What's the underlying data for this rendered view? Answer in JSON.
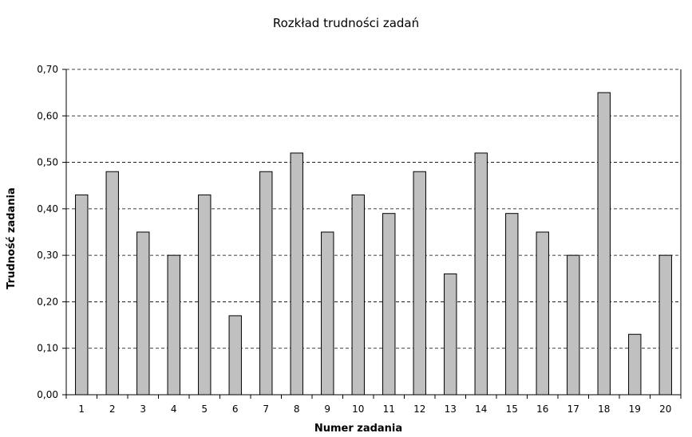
{
  "chart_data": {
    "type": "bar",
    "title": "Rozkład trudności zadań",
    "xlabel": "Numer zadania",
    "ylabel": "Trudność zadania",
    "ylim": [
      0,
      0.7
    ],
    "yticks": [
      "0,00",
      "0,10",
      "0,20",
      "0,30",
      "0,40",
      "0,50",
      "0,60",
      "0,70"
    ],
    "grid": true,
    "categories": [
      "1",
      "2",
      "3",
      "4",
      "5",
      "6",
      "7",
      "8",
      "9",
      "10",
      "11",
      "12",
      "13",
      "14",
      "15",
      "16",
      "17",
      "18",
      "19",
      "20"
    ],
    "values": [
      0.43,
      0.48,
      0.35,
      0.3,
      0.43,
      0.17,
      0.48,
      0.52,
      0.35,
      0.43,
      0.39,
      0.48,
      0.26,
      0.52,
      0.39,
      0.35,
      0.3,
      0.65,
      0.13,
      0.3
    ],
    "bar_color": "#c0c0c0",
    "bar_edge_color": "#000000",
    "grid_color": "#000000"
  }
}
